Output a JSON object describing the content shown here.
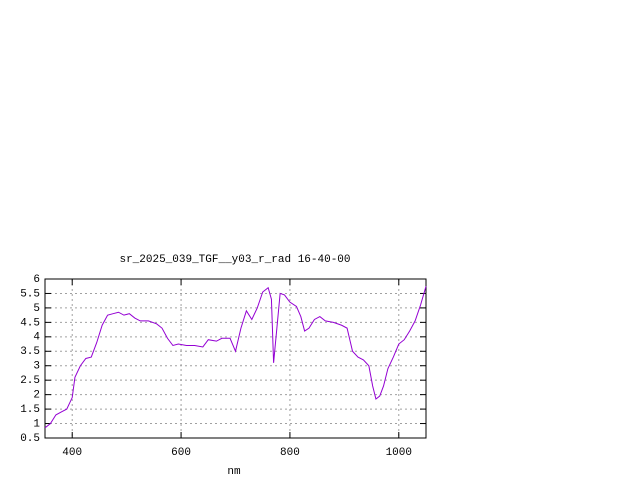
{
  "chart_data": {
    "type": "line",
    "title": "sr_2025_039_TGF__y03_r_rad 16-40-00",
    "x_label": "nm",
    "series": [
      {
        "name": null,
        "color": "#9400d3",
        "x": [
          350,
          360,
          370,
          380,
          390,
          400,
          405,
          415,
          425,
          435,
          445,
          455,
          465,
          475,
          485,
          495,
          505,
          515,
          525,
          540,
          555,
          565,
          575,
          585,
          595,
          610,
          625,
          640,
          650,
          665,
          675,
          690,
          700,
          710,
          720,
          730,
          740,
          750,
          760,
          766,
          770,
          776,
          782,
          790,
          800,
          812,
          820,
          827,
          835,
          845,
          855,
          865,
          880,
          895,
          905,
          915,
          925,
          935,
          945,
          952,
          958,
          965,
          972,
          980,
          990,
          1000,
          1010,
          1020,
          1030,
          1040,
          1050
        ],
        "values": [
          0.85,
          1.0,
          1.3,
          1.4,
          1.5,
          1.9,
          2.6,
          3.0,
          3.25,
          3.3,
          3.8,
          4.4,
          4.75,
          4.8,
          4.85,
          4.75,
          4.8,
          4.65,
          4.55,
          4.55,
          4.45,
          4.3,
          3.95,
          3.7,
          3.75,
          3.7,
          3.7,
          3.65,
          3.9,
          3.85,
          3.95,
          3.95,
          3.5,
          4.3,
          4.9,
          4.6,
          5.0,
          5.55,
          5.7,
          5.3,
          3.1,
          4.3,
          5.5,
          5.45,
          5.2,
          5.05,
          4.7,
          4.2,
          4.3,
          4.6,
          4.7,
          4.55,
          4.5,
          4.4,
          4.3,
          3.5,
          3.3,
          3.2,
          3.0,
          2.3,
          1.85,
          1.95,
          2.3,
          2.9,
          3.3,
          3.75,
          3.9,
          4.2,
          4.55,
          5.1,
          5.75
        ]
      }
    ],
    "xlim": [
      350,
      1050
    ],
    "xticks": [
      400,
      600,
      800,
      1000
    ],
    "ylim": [
      0.5,
      6
    ],
    "yticks": [
      0.5,
      1,
      1.5,
      2,
      2.5,
      3,
      3.5,
      4,
      4.5,
      5,
      5.5,
      6
    ],
    "grid": true
  }
}
